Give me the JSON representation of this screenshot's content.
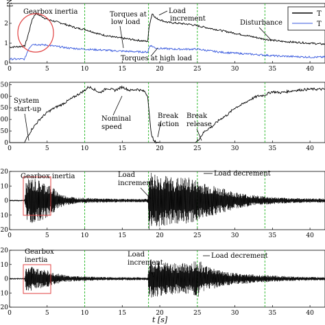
{
  "chart_data": [
    {
      "type": "line",
      "ylabel_fragment": "[Nm]",
      "xlim": [
        0,
        42
      ],
      "ylim": [
        0,
        3
      ],
      "x_ticks": [
        0,
        5,
        10,
        15,
        20,
        25,
        30,
        35,
        40
      ],
      "y_ticks": [
        0,
        1,
        2
      ],
      "legend_entries": [
        "T",
        "T"
      ],
      "legend_position": "top-right",
      "event_lines_x": [
        10,
        18.5,
        25,
        34
      ],
      "series": [
        {
          "color": "#000000",
          "points": [
            [
              0,
              0.8
            ],
            [
              2,
              0.85
            ],
            [
              2.3,
              1.2
            ],
            [
              2.6,
              1.6
            ],
            [
              3,
              2.2
            ],
            [
              3.5,
              2.5
            ],
            [
              4,
              2.4
            ],
            [
              5,
              2.2
            ],
            [
              7,
              2.0
            ],
            [
              9,
              1.75
            ],
            [
              10,
              1.7
            ],
            [
              12,
              1.45
            ],
            [
              14,
              1.3
            ],
            [
              16,
              1.2
            ],
            [
              18,
              1.1
            ],
            [
              18.4,
              1.1
            ],
            [
              18.6,
              1.9
            ],
            [
              19,
              2.5
            ],
            [
              19.5,
              2.25
            ],
            [
              21,
              2.05
            ],
            [
              24,
              1.95
            ],
            [
              26,
              1.8
            ],
            [
              28,
              1.65
            ],
            [
              30,
              1.5
            ],
            [
              32,
              1.35
            ],
            [
              34,
              1.2
            ],
            [
              36,
              1.1
            ],
            [
              38,
              1.05
            ],
            [
              40,
              1.0
            ],
            [
              42,
              0.95
            ]
          ]
        },
        {
          "color": "#3355dd",
          "points": [
            [
              0,
              0.2
            ],
            [
              2,
              0.2
            ],
            [
              2.5,
              0.7
            ],
            [
              3,
              0.95
            ],
            [
              5,
              0.9
            ],
            [
              8,
              0.75
            ],
            [
              10,
              0.7
            ],
            [
              15,
              0.6
            ],
            [
              18.4,
              0.55
            ],
            [
              18.7,
              0.9
            ],
            [
              19.5,
              0.75
            ],
            [
              22,
              0.7
            ],
            [
              25,
              0.7
            ],
            [
              28,
              0.55
            ],
            [
              32,
              0.45
            ],
            [
              36,
              0.35
            ],
            [
              40,
              0.3
            ],
            [
              42,
              0.3
            ]
          ]
        }
      ],
      "annotations": [
        "Gearbox inertia",
        "Torques at low load",
        "Load increment",
        "Disturbance",
        "Torques at high load"
      ]
    },
    {
      "type": "line",
      "xlim": [
        0,
        42
      ],
      "ylim": [
        0,
        260
      ],
      "y_ticks": [
        0,
        50,
        100,
        150,
        200,
        250
      ],
      "x_ticks": [
        0,
        5,
        10,
        15,
        20,
        25,
        30,
        35,
        40
      ],
      "event_lines_x": [
        10,
        18.5,
        25,
        34
      ],
      "series": [
        {
          "color": "#000000",
          "points": [
            [
              0,
              0
            ],
            [
              2,
              0
            ],
            [
              2.3,
              20
            ],
            [
              3,
              60
            ],
            [
              4,
              100
            ],
            [
              5,
              130
            ],
            [
              6,
              150
            ],
            [
              7,
              165
            ],
            [
              8,
              185
            ],
            [
              9,
              205
            ],
            [
              10,
              225
            ],
            [
              10.5,
              240
            ],
            [
              11,
              235
            ],
            [
              12,
              215
            ],
            [
              13,
              235
            ],
            [
              14,
              225
            ],
            [
              15,
              240
            ],
            [
              16,
              225
            ],
            [
              17,
              230
            ],
            [
              18,
              220
            ],
            [
              18.4,
              200
            ],
            [
              18.8,
              50
            ],
            [
              19.2,
              5
            ],
            [
              20,
              0
            ],
            [
              24.8,
              0
            ],
            [
              25.2,
              15
            ],
            [
              26,
              50
            ],
            [
              27,
              70
            ],
            [
              28,
              100
            ],
            [
              29,
              120
            ],
            [
              30,
              150
            ],
            [
              31,
              165
            ],
            [
              32,
              185
            ],
            [
              33,
              200
            ],
            [
              34,
              205
            ],
            [
              35,
              220
            ],
            [
              36,
              215
            ],
            [
              38,
              225
            ],
            [
              40,
              230
            ],
            [
              42,
              230
            ]
          ]
        }
      ],
      "annotations": [
        "System start-up",
        "Nominal speed",
        "Break action",
        "Break release"
      ]
    },
    {
      "type": "line",
      "xlim": [
        0,
        42
      ],
      "ylim": [
        -20,
        20
      ],
      "y_ticks": [
        -20,
        -10,
        0,
        10,
        20
      ],
      "x_ticks": [
        0,
        5,
        10,
        15,
        20,
        25,
        30,
        35,
        40
      ],
      "event_lines_x": [
        10,
        18.5,
        25,
        34
      ],
      "series": [
        {
          "color": "#000000",
          "envelope": [
            [
              0,
              0.5
            ],
            [
              2,
              0.5
            ],
            [
              2.2,
              14
            ],
            [
              3,
              16
            ],
            [
              4,
              14
            ],
            [
              5,
              12
            ],
            [
              6,
              8
            ],
            [
              7,
              4
            ],
            [
              9,
              2
            ],
            [
              12,
              1.5
            ],
            [
              15,
              1.2
            ],
            [
              18.4,
              1.2
            ],
            [
              18.6,
              20
            ],
            [
              20,
              18
            ],
            [
              22,
              16
            ],
            [
              24,
              16
            ],
            [
              26,
              12
            ],
            [
              28,
              9
            ],
            [
              30,
              6
            ],
            [
              32,
              4
            ],
            [
              34,
              3
            ],
            [
              36,
              2
            ],
            [
              40,
              1.5
            ],
            [
              42,
              1.5
            ]
          ]
        }
      ],
      "annotations": [
        "Gearbox inertia",
        "Load increment",
        "Load decrement"
      ]
    },
    {
      "type": "line",
      "xlabel": "t [s]",
      "xlim": [
        0,
        42
      ],
      "ylim": [
        -20,
        20
      ],
      "y_ticks": [
        -20,
        -10,
        0,
        10,
        20
      ],
      "x_ticks": [
        0,
        5,
        10,
        15,
        20,
        25,
        30,
        35,
        40
      ],
      "event_lines_x": [
        10,
        18.5,
        25,
        34
      ],
      "series": [
        {
          "color": "#000000",
          "envelope": [
            [
              0,
              0.5
            ],
            [
              2,
              0.5
            ],
            [
              2.2,
              8
            ],
            [
              3,
              9
            ],
            [
              4,
              7
            ],
            [
              5,
              6
            ],
            [
              6,
              4
            ],
            [
              8,
              2
            ],
            [
              12,
              1.2
            ],
            [
              18.4,
              1
            ],
            [
              18.6,
              14
            ],
            [
              20,
              12
            ],
            [
              22,
              11
            ],
            [
              24,
              11
            ],
            [
              25.2,
              14
            ],
            [
              26,
              9
            ],
            [
              28,
              6
            ],
            [
              30,
              4
            ],
            [
              34,
              2.5
            ],
            [
              38,
              1.5
            ],
            [
              42,
              1.2
            ]
          ]
        }
      ],
      "annotations": [
        "Gearbox inertia",
        "Load increment",
        "Load decrement"
      ]
    }
  ]
}
